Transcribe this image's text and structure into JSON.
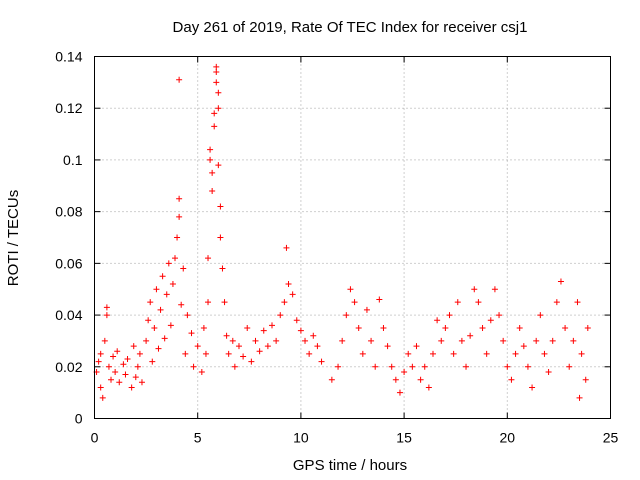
{
  "chart_data": {
    "type": "scatter",
    "title": "Day 261 of 2019, Rate Of TEC Index for receiver csj1",
    "xlabel": "GPS time / hours",
    "ylabel": "ROTI / TECUs",
    "xlim": [
      0,
      25
    ],
    "ylim": [
      0,
      0.14
    ],
    "xticks": [
      "0",
      "5",
      "10",
      "15",
      "20",
      "25"
    ],
    "yticks": [
      "0",
      "0.02",
      "0.04",
      "0.06",
      "0.08",
      "0.1",
      "0.12",
      "0.14"
    ],
    "grid": true,
    "marker": "plus",
    "color": "#ff0000",
    "series": [
      {
        "name": "ROTI",
        "points": [
          [
            0.1,
            0.018
          ],
          [
            0.2,
            0.022
          ],
          [
            0.3,
            0.012
          ],
          [
            0.3,
            0.025
          ],
          [
            0.4,
            0.008
          ],
          [
            0.5,
            0.03
          ],
          [
            0.6,
            0.04
          ],
          [
            0.6,
            0.043
          ],
          [
            0.7,
            0.02
          ],
          [
            0.8,
            0.015
          ],
          [
            0.9,
            0.024
          ],
          [
            1.0,
            0.018
          ],
          [
            1.1,
            0.026
          ],
          [
            1.2,
            0.014
          ],
          [
            1.4,
            0.021
          ],
          [
            1.5,
            0.017
          ],
          [
            1.6,
            0.023
          ],
          [
            1.8,
            0.012
          ],
          [
            1.9,
            0.028
          ],
          [
            2.0,
            0.016
          ],
          [
            2.1,
            0.02
          ],
          [
            2.2,
            0.025
          ],
          [
            2.3,
            0.014
          ],
          [
            2.5,
            0.03
          ],
          [
            2.6,
            0.038
          ],
          [
            2.7,
            0.045
          ],
          [
            2.8,
            0.022
          ],
          [
            2.9,
            0.035
          ],
          [
            3.0,
            0.05
          ],
          [
            3.1,
            0.027
          ],
          [
            3.2,
            0.042
          ],
          [
            3.3,
            0.055
          ],
          [
            3.4,
            0.031
          ],
          [
            3.5,
            0.048
          ],
          [
            3.6,
            0.06
          ],
          [
            3.7,
            0.036
          ],
          [
            3.8,
            0.052
          ],
          [
            3.9,
            0.062
          ],
          [
            4.0,
            0.07
          ],
          [
            4.1,
            0.078
          ],
          [
            4.1,
            0.085
          ],
          [
            4.1,
            0.131
          ],
          [
            4.2,
            0.044
          ],
          [
            4.3,
            0.058
          ],
          [
            4.4,
            0.025
          ],
          [
            4.5,
            0.04
          ],
          [
            4.7,
            0.033
          ],
          [
            4.8,
            0.02
          ],
          [
            5.0,
            0.028
          ],
          [
            5.2,
            0.018
          ],
          [
            5.3,
            0.035
          ],
          [
            5.4,
            0.025
          ],
          [
            5.5,
            0.045
          ],
          [
            5.5,
            0.062
          ],
          [
            5.6,
            0.1
          ],
          [
            5.6,
            0.104
          ],
          [
            5.7,
            0.095
          ],
          [
            5.7,
            0.088
          ],
          [
            5.8,
            0.113
          ],
          [
            5.8,
            0.118
          ],
          [
            5.9,
            0.13
          ],
          [
            5.9,
            0.134
          ],
          [
            5.9,
            0.136
          ],
          [
            6.0,
            0.126
          ],
          [
            6.0,
            0.12
          ],
          [
            6.0,
            0.098
          ],
          [
            6.1,
            0.082
          ],
          [
            6.1,
            0.07
          ],
          [
            6.2,
            0.058
          ],
          [
            6.3,
            0.045
          ],
          [
            6.4,
            0.032
          ],
          [
            6.5,
            0.025
          ],
          [
            6.7,
            0.03
          ],
          [
            6.8,
            0.02
          ],
          [
            7.0,
            0.028
          ],
          [
            7.2,
            0.024
          ],
          [
            7.4,
            0.035
          ],
          [
            7.6,
            0.022
          ],
          [
            7.8,
            0.03
          ],
          [
            8.0,
            0.026
          ],
          [
            8.2,
            0.034
          ],
          [
            8.4,
            0.028
          ],
          [
            8.6,
            0.036
          ],
          [
            8.8,
            0.03
          ],
          [
            9.0,
            0.04
          ],
          [
            9.2,
            0.045
          ],
          [
            9.3,
            0.066
          ],
          [
            9.4,
            0.052
          ],
          [
            9.6,
            0.048
          ],
          [
            9.8,
            0.038
          ],
          [
            10.0,
            0.034
          ],
          [
            10.2,
            0.03
          ],
          [
            10.4,
            0.025
          ],
          [
            10.6,
            0.032
          ],
          [
            10.8,
            0.028
          ],
          [
            11.0,
            0.022
          ],
          [
            11.5,
            0.015
          ],
          [
            11.8,
            0.02
          ],
          [
            12.0,
            0.03
          ],
          [
            12.2,
            0.04
          ],
          [
            12.4,
            0.05
          ],
          [
            12.6,
            0.045
          ],
          [
            12.8,
            0.035
          ],
          [
            13.0,
            0.025
          ],
          [
            13.2,
            0.042
          ],
          [
            13.4,
            0.03
          ],
          [
            13.6,
            0.02
          ],
          [
            13.8,
            0.046
          ],
          [
            14.0,
            0.035
          ],
          [
            14.2,
            0.028
          ],
          [
            14.4,
            0.02
          ],
          [
            14.6,
            0.015
          ],
          [
            14.8,
            0.01
          ],
          [
            15.0,
            0.018
          ],
          [
            15.2,
            0.025
          ],
          [
            15.4,
            0.02
          ],
          [
            15.6,
            0.028
          ],
          [
            15.8,
            0.015
          ],
          [
            16.0,
            0.02
          ],
          [
            16.2,
            0.012
          ],
          [
            16.4,
            0.025
          ],
          [
            16.6,
            0.038
          ],
          [
            16.8,
            0.03
          ],
          [
            17.0,
            0.035
          ],
          [
            17.2,
            0.04
          ],
          [
            17.4,
            0.025
          ],
          [
            17.6,
            0.045
          ],
          [
            17.8,
            0.03
          ],
          [
            18.0,
            0.02
          ],
          [
            18.2,
            0.032
          ],
          [
            18.4,
            0.05
          ],
          [
            18.6,
            0.045
          ],
          [
            18.8,
            0.035
          ],
          [
            19.0,
            0.025
          ],
          [
            19.2,
            0.038
          ],
          [
            19.4,
            0.05
          ],
          [
            19.6,
            0.04
          ],
          [
            19.8,
            0.03
          ],
          [
            20.0,
            0.02
          ],
          [
            20.2,
            0.015
          ],
          [
            20.4,
            0.025
          ],
          [
            20.6,
            0.035
          ],
          [
            20.8,
            0.028
          ],
          [
            21.0,
            0.02
          ],
          [
            21.2,
            0.012
          ],
          [
            21.4,
            0.03
          ],
          [
            21.6,
            0.04
          ],
          [
            21.8,
            0.025
          ],
          [
            22.0,
            0.018
          ],
          [
            22.2,
            0.03
          ],
          [
            22.4,
            0.045
          ],
          [
            22.6,
            0.053
          ],
          [
            22.8,
            0.035
          ],
          [
            23.0,
            0.02
          ],
          [
            23.2,
            0.03
          ],
          [
            23.4,
            0.045
          ],
          [
            23.5,
            0.008
          ],
          [
            23.6,
            0.025
          ],
          [
            23.8,
            0.015
          ],
          [
            23.9,
            0.035
          ]
        ]
      }
    ]
  }
}
